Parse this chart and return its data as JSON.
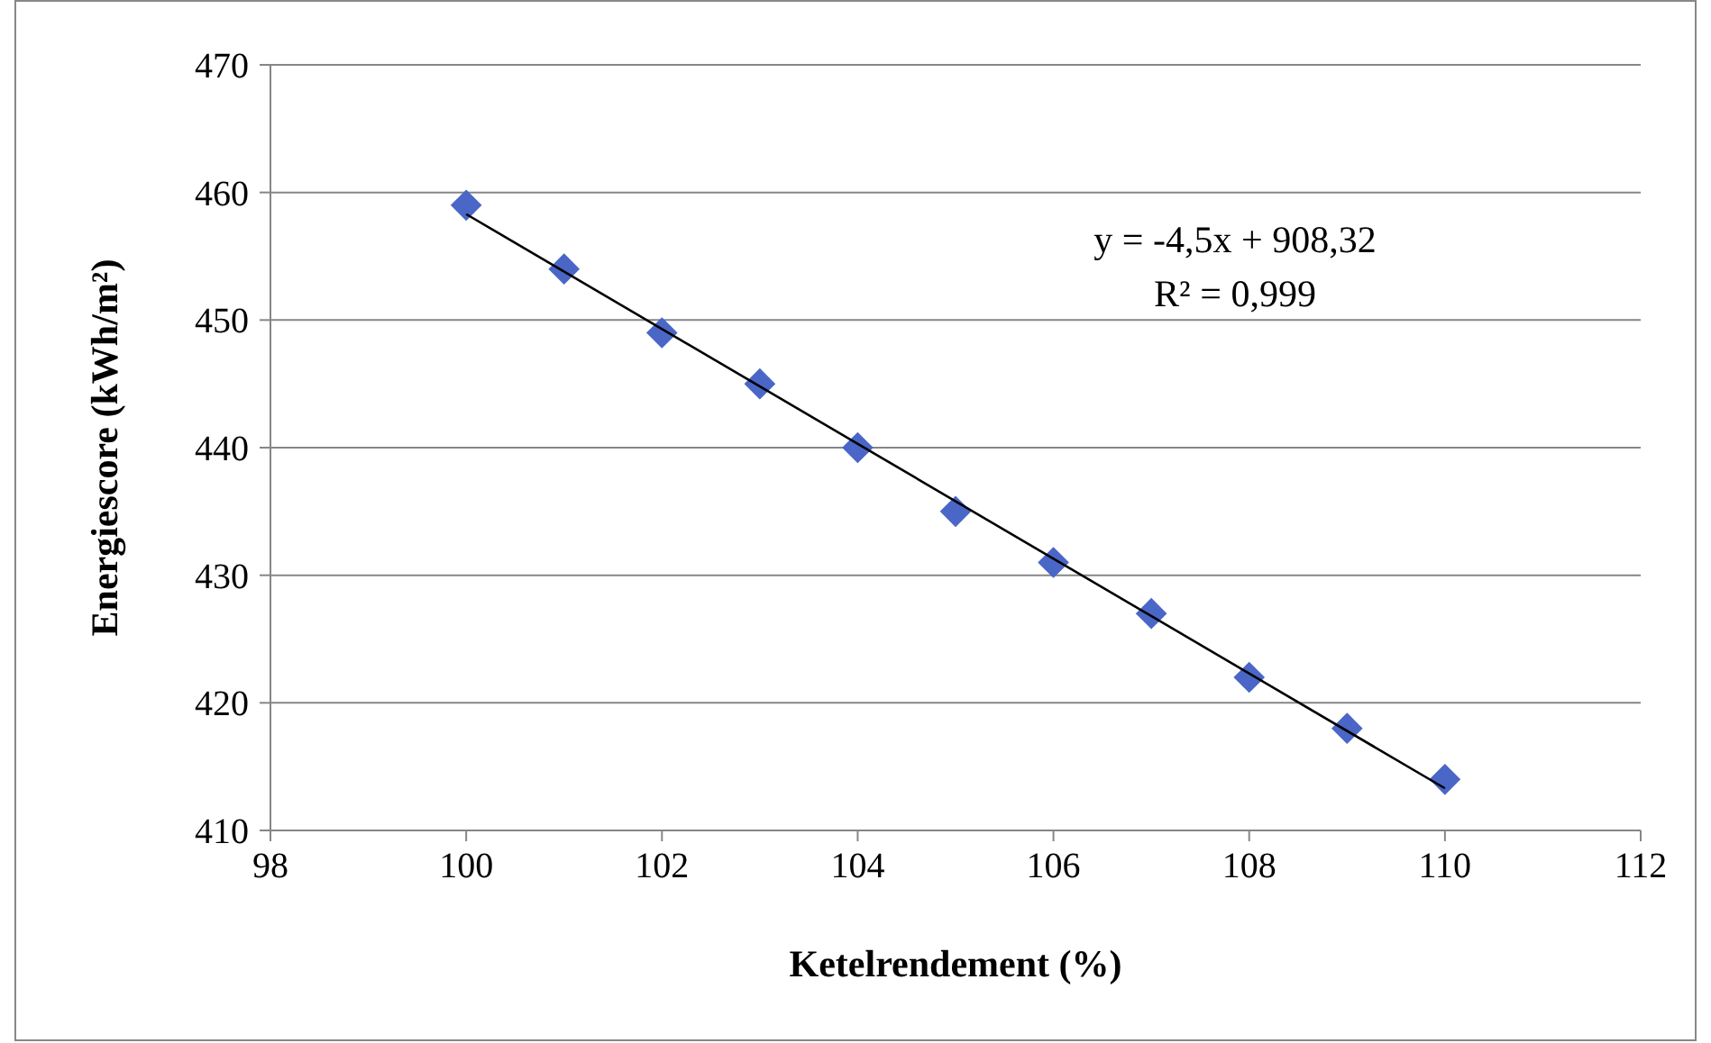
{
  "chart_data": {
    "type": "scatter",
    "xlabel": "Ketelrendement (%)",
    "ylabel": "Energiescore (kWh/m²)",
    "xlim": [
      98,
      112
    ],
    "xticks": [
      98,
      100,
      102,
      104,
      106,
      108,
      110,
      112
    ],
    "ylim": [
      410,
      470
    ],
    "yticks": [
      410,
      420,
      430,
      440,
      450,
      460,
      470
    ],
    "grid": "y",
    "marker": "diamond",
    "series": [
      {
        "color": "#4a66c6",
        "x": [
          100,
          101,
          102,
          103,
          104,
          105,
          106,
          107,
          108,
          109,
          110
        ],
        "values": [
          459,
          454,
          449,
          445,
          440,
          435,
          431,
          427,
          422,
          418,
          414
        ]
      },
      {
        "type": "line",
        "color": "#000000",
        "marker": "none",
        "line_style": "solid",
        "x": [
          100,
          110
        ],
        "values": [
          458.3,
          413.3
        ]
      }
    ],
    "annotations": [
      "y = -4,5x + 908,32",
      "R² = 0,999"
    ]
  }
}
